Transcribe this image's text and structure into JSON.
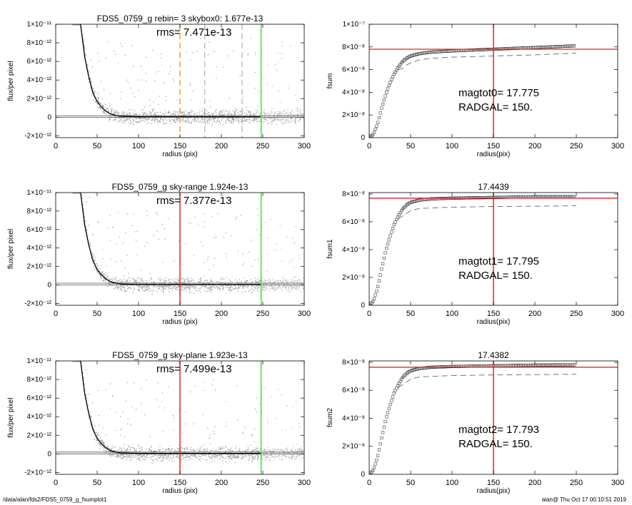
{
  "footer": {
    "left": "/data/alan/fds2/FDS5_0759_g_fsumplot1",
    "right": "alan@  Thu Oct 17 00:10:51 2019"
  },
  "colors": {
    "red": "#e8231f",
    "green": "#2ee82e",
    "orange": "#f0a030",
    "gray_dash": "#888888",
    "scatter": "#9a9a9a",
    "profile": "#000000"
  },
  "chart_data": [
    {
      "type": "scatter",
      "panel": "profile",
      "title": "FDS5_0759_g rebin= 3    skybox0:  1.677e-13",
      "annotation": "rms= 7.471e-13",
      "xlabel": "radius (pix)",
      "ylabel": "flux/per pixel",
      "xlim": [
        0,
        300
      ],
      "ylim": [
        -2.2e-12,
        1e-11
      ],
      "xticks": [
        0,
        50,
        100,
        150,
        200,
        250,
        300
      ],
      "xtick_labels": [
        "0",
        "50",
        "100",
        "150",
        "200",
        "250",
        "300"
      ],
      "yticks": [
        -2e-12,
        0,
        2e-12,
        4e-12,
        6e-12,
        8e-12,
        1e-11
      ],
      "ytick_labels": [
        "-2×10⁻¹²",
        "0",
        "2×10⁻¹²",
        "4×10⁻¹²",
        "6×10⁻¹²",
        "8×10⁻¹²",
        "1×10⁻¹¹"
      ],
      "sky_levels": [
        0,
        1.677e-13
      ],
      "vlines": [
        {
          "x": 150,
          "color": "orange",
          "style": "dashed"
        },
        {
          "x": 180,
          "color": "gray_dash",
          "style": "dashed"
        },
        {
          "x": 225,
          "color": "gray_dash",
          "style": "dashed"
        },
        {
          "x": 248,
          "color": "green",
          "style": "solid"
        }
      ],
      "profile": {
        "x": [
          30,
          35,
          40,
          45,
          50,
          55,
          60,
          65,
          70,
          75,
          80,
          100,
          150,
          200,
          248
        ],
        "y": [
          1e-11,
          6.5e-12,
          4.3e-12,
          2.6e-12,
          1.7e-12,
          1.1e-12,
          7e-13,
          4e-13,
          2.5e-13,
          1.5e-13,
          1e-13,
          5e-14,
          5e-14,
          5e-14,
          5e-14
        ]
      }
    },
    {
      "type": "scatter",
      "panel": "growth",
      "title": "",
      "annotation": "magtot0=  17.775",
      "annotation2": "RADGAL=    150.",
      "xlabel": "radius(pix)",
      "ylabel": "fsum",
      "xlim": [
        0,
        300
      ],
      "ylim": [
        0,
        1e-07
      ],
      "xticks": [
        0,
        50,
        100,
        150,
        200,
        250,
        300
      ],
      "xtick_labels": [
        "0",
        "50",
        "100",
        "150",
        "200",
        "250",
        "300"
      ],
      "yticks": [
        0,
        2e-08,
        4e-08,
        6e-08,
        8e-08,
        1e-07
      ],
      "ytick_labels": [
        "0",
        "2×10⁻⁸",
        "4×10⁻⁸",
        "6×10⁻⁸",
        "8×10⁻⁸",
        "1×10⁻⁷"
      ],
      "hline": 7.8e-08,
      "vline": 150,
      "fsum": {
        "x": [
          0,
          5,
          10,
          15,
          20,
          25,
          30,
          35,
          40,
          45,
          50,
          60,
          75,
          100,
          150,
          200,
          250
        ],
        "y": [
          0,
          3e-09,
          1.2e-08,
          2.6e-08,
          3.8e-08,
          4.8e-08,
          5.6e-08,
          6.2e-08,
          6.7e-08,
          7e-08,
          7.2e-08,
          7.4e-08,
          7.55e-08,
          7.65e-08,
          7.8e-08,
          7.95e-08,
          8.1e-08
        ]
      },
      "dashed": {
        "x": [
          35,
          40,
          45,
          50,
          60,
          75,
          100,
          150,
          200,
          250
        ],
        "y": [
          6e-08,
          6.1e-08,
          6.4e-08,
          6.6e-08,
          6.85e-08,
          7e-08,
          7.1e-08,
          7.2e-08,
          7.3e-08,
          7.45e-08
        ]
      }
    },
    {
      "type": "scatter",
      "panel": "profile",
      "title": "FDS5_0759_g sky-range  1.924e-13",
      "annotation": "rms= 7.377e-13",
      "xlabel": "radius (pix)",
      "ylabel": "flux/per pixel",
      "xlim": [
        0,
        300
      ],
      "ylim": [
        -2.2e-12,
        1e-11
      ],
      "xticks": [
        0,
        50,
        100,
        150,
        200,
        250,
        300
      ],
      "xtick_labels": [
        "0",
        "50",
        "100",
        "150",
        "200",
        "250",
        "300"
      ],
      "yticks": [
        -2e-12,
        0,
        2e-12,
        4e-12,
        6e-12,
        8e-12,
        1e-11
      ],
      "ytick_labels": [
        "-2×10⁻¹²",
        "0",
        "2×10⁻¹²",
        "4×10⁻¹²",
        "6×10⁻¹²",
        "8×10⁻¹²",
        "1×10⁻¹¹"
      ],
      "sky_levels": [
        0,
        1.924e-13
      ],
      "vlines": [
        {
          "x": 150,
          "color": "red",
          "style": "solid"
        },
        {
          "x": 248,
          "color": "green",
          "style": "solid"
        }
      ],
      "profile": {
        "x": [
          30,
          35,
          40,
          45,
          50,
          55,
          60,
          65,
          70,
          75,
          80,
          100,
          150,
          200,
          248
        ],
        "y": [
          1e-11,
          6.5e-12,
          4.3e-12,
          2.6e-12,
          1.7e-12,
          1.1e-12,
          7e-13,
          4e-13,
          2.5e-13,
          1.5e-13,
          1e-13,
          5e-14,
          5e-14,
          5e-14,
          5e-14
        ]
      }
    },
    {
      "type": "scatter",
      "panel": "growth",
      "title": "17.4439",
      "annotation": "magtot1=  17.795",
      "annotation2": "RADGAL=    150.",
      "xlabel": "radius(pix)",
      "ylabel": "fsum1",
      "xlim": [
        0,
        300
      ],
      "ylim": [
        0,
        8.1e-08
      ],
      "xticks": [
        0,
        50,
        100,
        150,
        200,
        250,
        300
      ],
      "xtick_labels": [
        "0",
        "50",
        "100",
        "150",
        "200",
        "250",
        "300"
      ],
      "yticks": [
        0,
        2e-08,
        4e-08,
        6e-08,
        8e-08
      ],
      "ytick_labels": [
        "0",
        "2×10⁻⁸",
        "4×10⁻⁸",
        "6×10⁻⁸",
        "8×10⁻⁸"
      ],
      "hline": 7.7e-08,
      "vline": 150,
      "fsum": {
        "x": [
          0,
          5,
          10,
          15,
          20,
          25,
          30,
          35,
          40,
          45,
          50,
          60,
          75,
          100,
          150,
          200,
          250
        ],
        "y": [
          0,
          3e-09,
          1.2e-08,
          2.6e-08,
          3.9e-08,
          4.9e-08,
          5.8e-08,
          6.4e-08,
          6.9e-08,
          7.2e-08,
          7.4e-08,
          7.55e-08,
          7.65e-08,
          7.7e-08,
          7.75e-08,
          7.8e-08,
          7.8e-08
        ]
      },
      "dashed": {
        "x": [
          35,
          40,
          45,
          50,
          60,
          75,
          100,
          150,
          200,
          250
        ],
        "y": [
          6.2e-08,
          6.4e-08,
          6.6e-08,
          6.8e-08,
          6.95e-08,
          7e-08,
          7.05e-08,
          7.1e-08,
          7.12e-08,
          7.15e-08
        ]
      }
    },
    {
      "type": "scatter",
      "panel": "profile",
      "title": "FDS5_0759_g sky-plane  1.923e-13",
      "annotation": "rms= 7.499e-13",
      "xlabel": "radius (pix)",
      "ylabel": "flux/per pixel",
      "xlim": [
        0,
        300
      ],
      "ylim": [
        -2.2e-12,
        1e-11
      ],
      "xticks": [
        0,
        50,
        100,
        150,
        200,
        250,
        300
      ],
      "xtick_labels": [
        "0",
        "50",
        "100",
        "150",
        "200",
        "250",
        "300"
      ],
      "yticks": [
        -2e-12,
        0,
        2e-12,
        4e-12,
        6e-12,
        8e-12,
        1e-11
      ],
      "ytick_labels": [
        "-2×10⁻¹²",
        "0",
        "2×10⁻¹²",
        "4×10⁻¹²",
        "6×10⁻¹²",
        "8×10⁻¹²",
        "1×10⁻¹¹"
      ],
      "sky_levels": [
        0,
        1.923e-13
      ],
      "vlines": [
        {
          "x": 150,
          "color": "red",
          "style": "solid"
        },
        {
          "x": 248,
          "color": "green",
          "style": "solid"
        }
      ],
      "profile": {
        "x": [
          30,
          35,
          40,
          45,
          50,
          55,
          60,
          65,
          70,
          75,
          80,
          100,
          150,
          200,
          248
        ],
        "y": [
          1e-11,
          6.5e-12,
          4.3e-12,
          2.6e-12,
          1.7e-12,
          1.1e-12,
          7e-13,
          4e-13,
          2.5e-13,
          1.5e-13,
          1e-13,
          5e-14,
          5e-14,
          5e-14,
          5e-14
        ]
      }
    },
    {
      "type": "scatter",
      "panel": "growth",
      "title": "17.4382",
      "annotation": "magtot2= 17.793",
      "annotation2": "RADGAL=    150.",
      "xlabel": "radius(pix)",
      "ylabel": "fsum2",
      "xlim": [
        0,
        300
      ],
      "ylim": [
        0,
        8.1e-08
      ],
      "xticks": [
        0,
        50,
        100,
        150,
        200,
        250,
        300
      ],
      "xtick_labels": [
        "0",
        "50",
        "100",
        "150",
        "200",
        "250",
        "300"
      ],
      "yticks": [
        0,
        2e-08,
        4e-08,
        6e-08,
        8e-08
      ],
      "ytick_labels": [
        "0",
        "2×10⁻⁸",
        "4×10⁻⁸",
        "6×10⁻⁸",
        "8×10⁻⁸"
      ],
      "hline": 7.65e-08,
      "vline": 150,
      "fsum": {
        "x": [
          0,
          5,
          10,
          15,
          20,
          25,
          30,
          35,
          40,
          45,
          50,
          60,
          75,
          100,
          150,
          200,
          250
        ],
        "y": [
          0,
          3e-09,
          1.2e-08,
          2.6e-08,
          3.9e-08,
          4.9e-08,
          5.8e-08,
          6.4e-08,
          6.9e-08,
          7.2e-08,
          7.4e-08,
          7.55e-08,
          7.65e-08,
          7.7e-08,
          7.75e-08,
          7.8e-08,
          7.82e-08
        ]
      },
      "dashed": {
        "x": [
          35,
          40,
          45,
          50,
          60,
          75,
          100,
          150,
          200,
          250
        ],
        "y": [
          6.2e-08,
          6.4e-08,
          6.6e-08,
          6.8e-08,
          6.95e-08,
          7e-08,
          7.05e-08,
          7.1e-08,
          7.12e-08,
          7.15e-08
        ]
      }
    }
  ]
}
